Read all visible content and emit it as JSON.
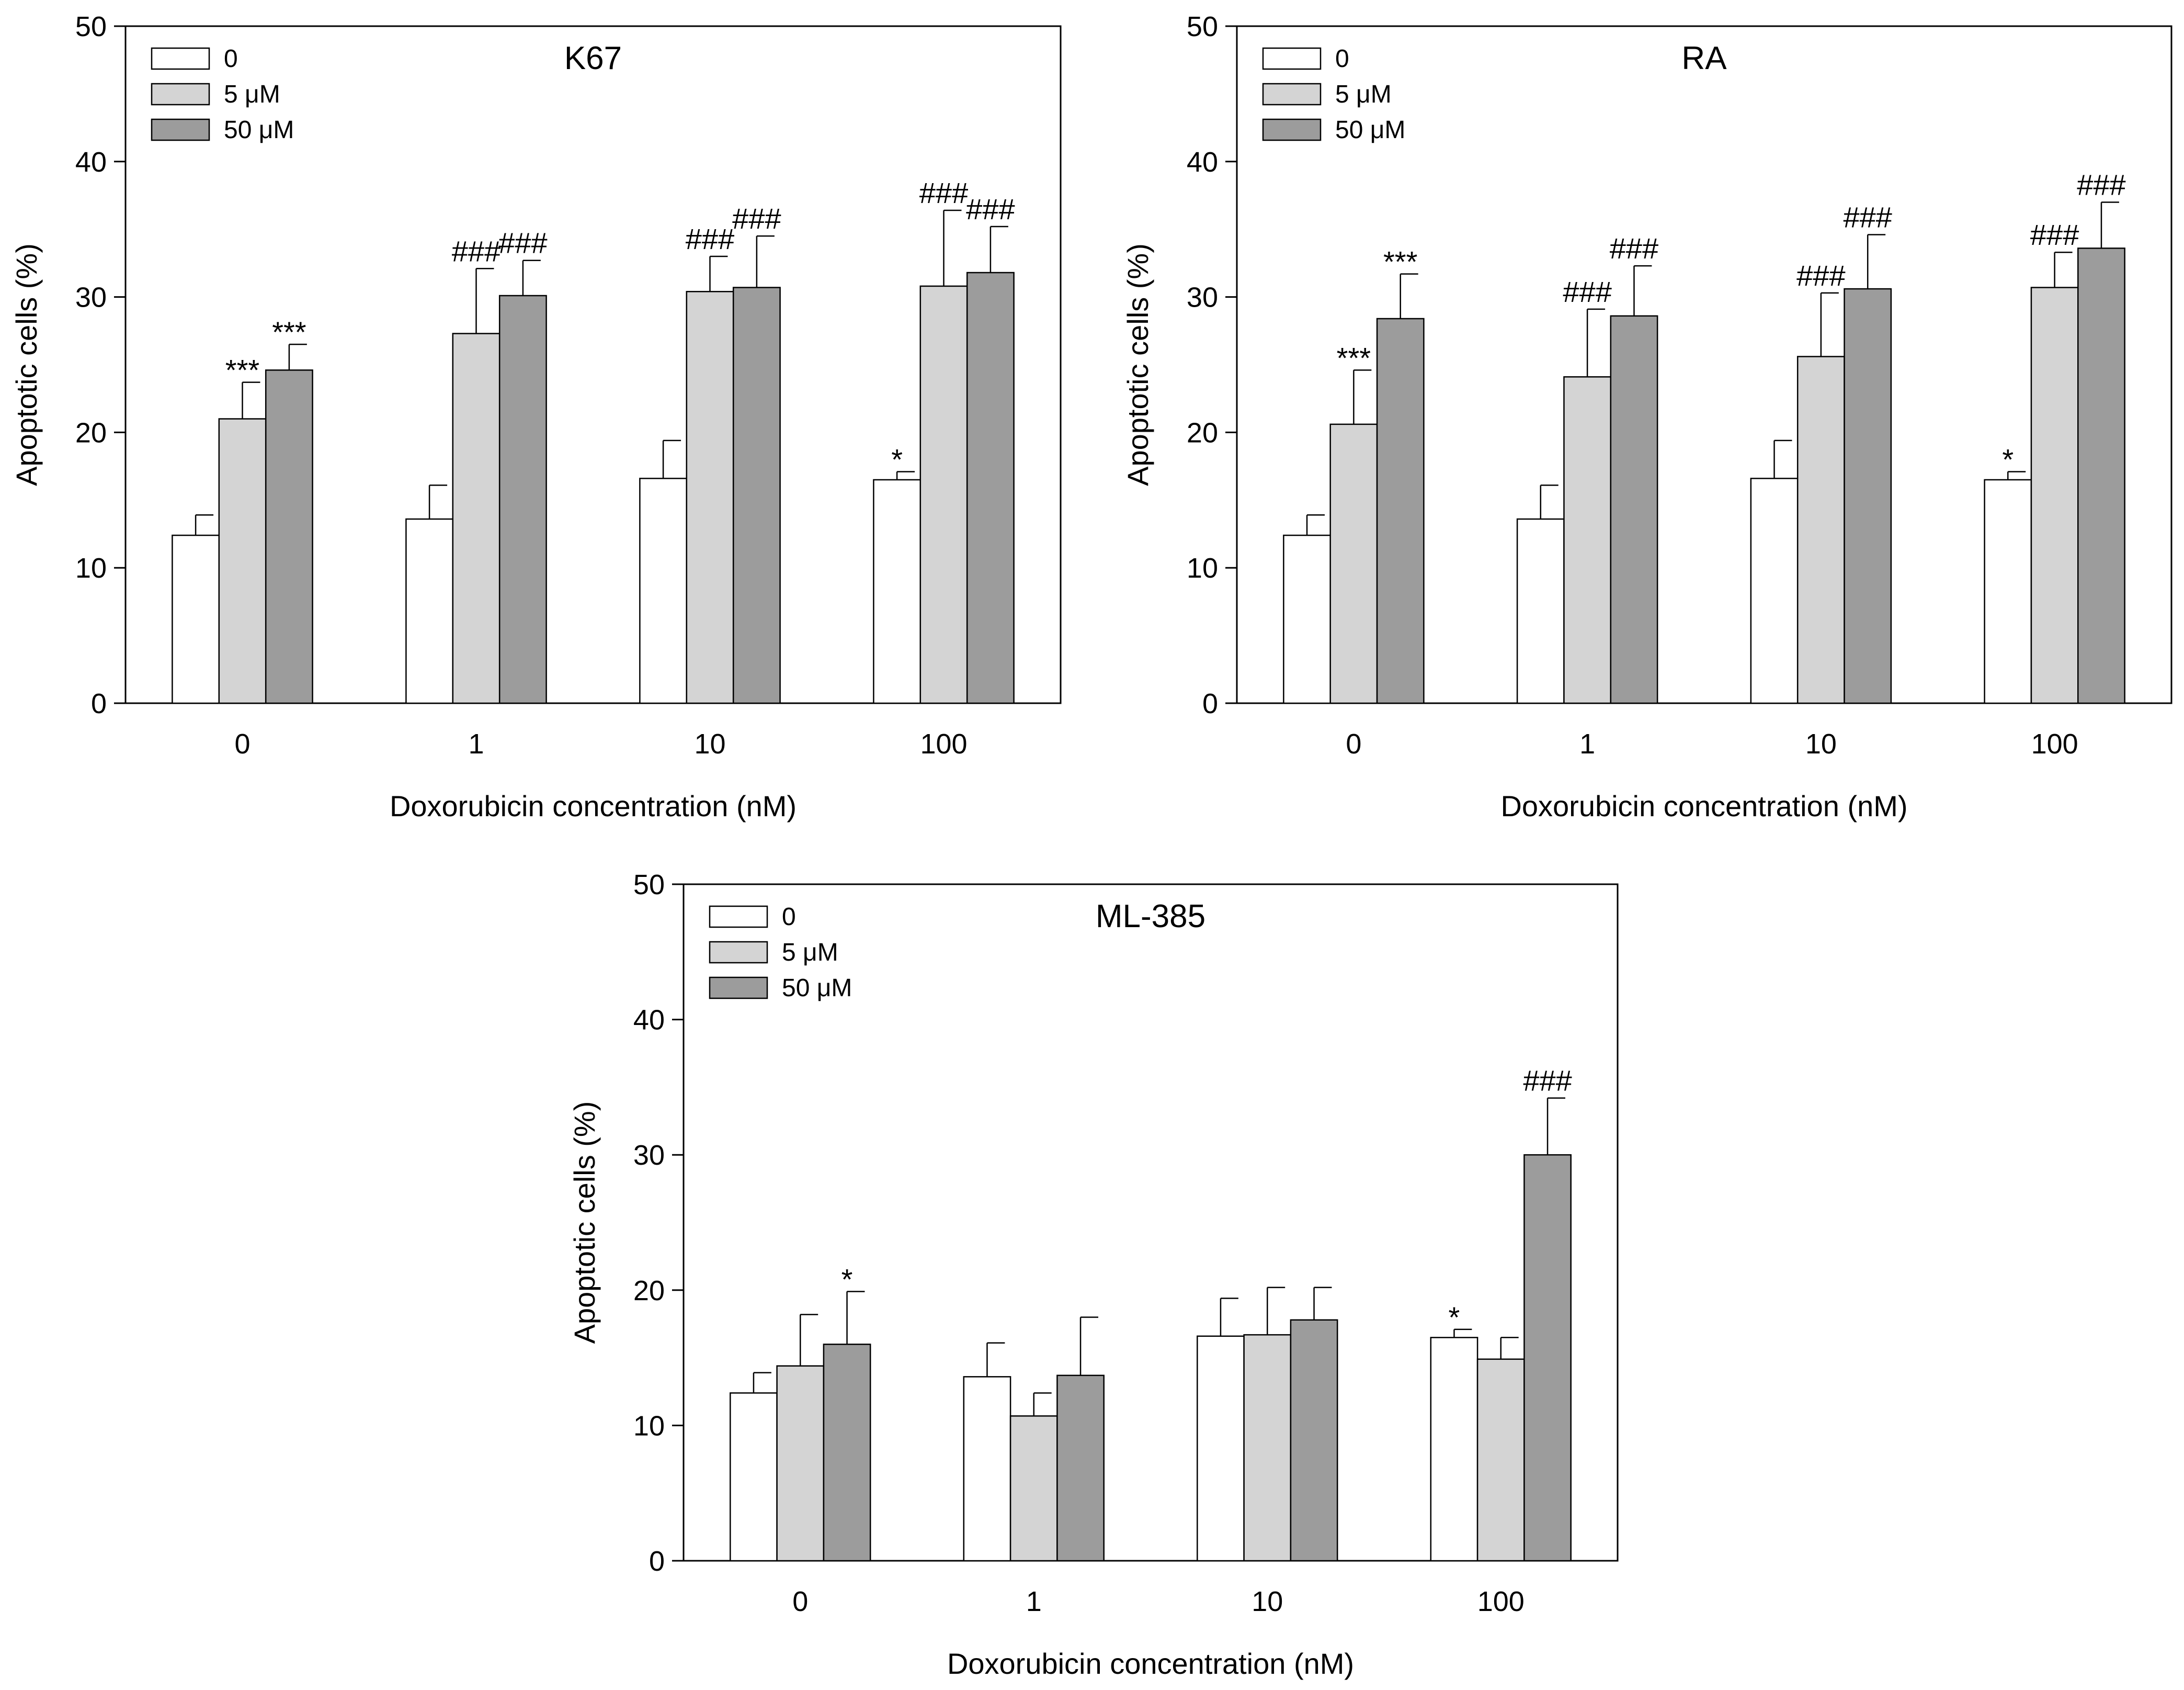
{
  "chart_data": [
    {
      "type": "bar",
      "title": "K67",
      "xlabel": "Doxorubicin concentration (nM)",
      "ylabel": "Apoptotic cells (%)",
      "ylim": [
        0,
        50
      ],
      "yticks": [
        "0",
        "10",
        "20",
        "30",
        "40",
        "50"
      ],
      "categories": [
        "0",
        "1",
        "10",
        "100"
      ],
      "legend_position": "top-left",
      "series": [
        {
          "name": "0",
          "color": "#ffffff",
          "values": [
            12.4,
            13.6,
            16.6,
            16.5
          ],
          "errors": [
            1.5,
            2.5,
            2.8,
            0.6
          ],
          "annotations": [
            "",
            "",
            "",
            "*"
          ]
        },
        {
          "name": "5 μM",
          "color": "#d4d4d4",
          "values": [
            21.0,
            27.3,
            30.4,
            30.8
          ],
          "errors": [
            2.7,
            4.8,
            2.6,
            5.6
          ],
          "annotations": [
            "***",
            "###",
            "###",
            "###"
          ]
        },
        {
          "name": "50 μM",
          "color": "#9c9c9c",
          "values": [
            24.6,
            30.1,
            30.7,
            31.8
          ],
          "errors": [
            1.9,
            2.6,
            3.8,
            3.4
          ],
          "annotations": [
            "***",
            "###",
            "###",
            "###"
          ]
        }
      ]
    },
    {
      "type": "bar",
      "title": "RA",
      "xlabel": "Doxorubicin concentration (nM)",
      "ylabel": "Apoptotic cells (%)",
      "ylim": [
        0,
        50
      ],
      "yticks": [
        "0",
        "10",
        "20",
        "30",
        "40",
        "50"
      ],
      "categories": [
        "0",
        "1",
        "10",
        "100"
      ],
      "legend_position": "top-left",
      "series": [
        {
          "name": "0",
          "color": "#ffffff",
          "values": [
            12.4,
            13.6,
            16.6,
            16.5
          ],
          "errors": [
            1.5,
            2.5,
            2.8,
            0.6
          ],
          "annotations": [
            "",
            "",
            "",
            "*"
          ]
        },
        {
          "name": "5 μM",
          "color": "#d4d4d4",
          "values": [
            20.6,
            24.1,
            25.6,
            30.7
          ],
          "errors": [
            4.0,
            5.0,
            4.7,
            2.6
          ],
          "annotations": [
            "***",
            "###",
            "###",
            "###"
          ]
        },
        {
          "name": "50 μM",
          "color": "#9c9c9c",
          "values": [
            28.4,
            28.6,
            30.6,
            33.6
          ],
          "errors": [
            3.3,
            3.7,
            4.0,
            3.4
          ],
          "annotations": [
            "***",
            "###",
            "###",
            "###"
          ]
        }
      ]
    },
    {
      "type": "bar",
      "title": "ML-385",
      "xlabel": "Doxorubicin concentration (nM)",
      "ylabel": "Apoptotic cells (%)",
      "ylim": [
        0,
        50
      ],
      "yticks": [
        "0",
        "10",
        "20",
        "30",
        "40",
        "50"
      ],
      "categories": [
        "0",
        "1",
        "10",
        "100"
      ],
      "legend_position": "top-left",
      "series": [
        {
          "name": "0",
          "color": "#ffffff",
          "values": [
            12.4,
            13.6,
            16.6,
            16.5
          ],
          "errors": [
            1.5,
            2.5,
            2.8,
            0.6
          ],
          "annotations": [
            "",
            "",
            "",
            "*"
          ]
        },
        {
          "name": "5 μM",
          "color": "#d4d4d4",
          "values": [
            14.4,
            10.7,
            16.7,
            14.9
          ],
          "errors": [
            3.8,
            1.7,
            3.5,
            1.6
          ],
          "annotations": [
            "",
            "",
            "",
            ""
          ]
        },
        {
          "name": "50 μM",
          "color": "#9c9c9c",
          "values": [
            16.0,
            13.7,
            17.8,
            30.0
          ],
          "errors": [
            3.9,
            4.3,
            2.4,
            4.2
          ],
          "annotations": [
            "*",
            "",
            "",
            "###"
          ]
        }
      ]
    }
  ]
}
